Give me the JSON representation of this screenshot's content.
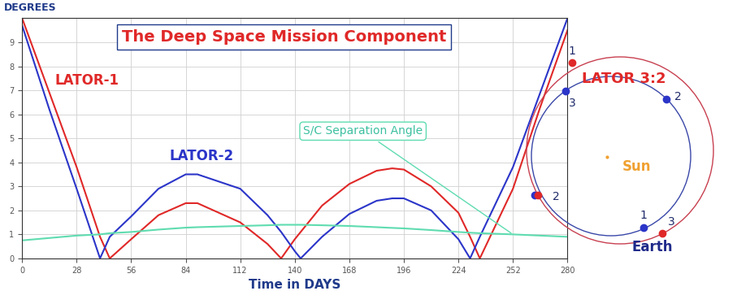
{
  "chart_data": {
    "type": "line",
    "title": "The Deep Space Mission Component",
    "y_label": "DEGREES",
    "x_label": "Time in DAYS",
    "x": [
      0,
      14,
      28,
      40,
      45,
      56,
      70,
      84,
      90,
      112,
      126,
      133,
      140,
      143,
      154,
      168,
      182,
      190,
      196,
      210,
      224,
      230,
      235,
      252,
      266,
      280
    ],
    "xlim": [
      0,
      280
    ],
    "xticks": [
      0,
      28,
      56,
      84,
      112,
      140,
      168,
      196,
      224,
      252,
      280
    ],
    "ylim": [
      0,
      10
    ],
    "yticks": [
      0,
      1,
      2,
      3,
      4,
      5,
      6,
      7,
      8,
      9
    ],
    "grid": true,
    "series": [
      {
        "name": "LATOR-1",
        "color": "#e02828",
        "values": [
          10,
          6.9,
          3.8,
          0.9,
          0,
          0.8,
          1.8,
          2.3,
          2.3,
          1.5,
          0.6,
          0,
          0.8,
          1.1,
          2.2,
          3.1,
          3.65,
          3.75,
          3.7,
          3.0,
          1.9,
          0.9,
          0,
          2.9,
          6.3,
          9.5
        ]
      },
      {
        "name": "LATOR-2",
        "color": "#2b35c8",
        "values": [
          9.7,
          6.2,
          2.9,
          0,
          0.9,
          1.75,
          2.9,
          3.5,
          3.5,
          2.9,
          1.8,
          1.1,
          0.3,
          0,
          0.9,
          1.85,
          2.4,
          2.5,
          2.5,
          2.0,
          0.8,
          0,
          0.9,
          3.8,
          6.9,
          10
        ]
      },
      {
        "name": "S/C Separation Angle",
        "color": "#5fdcb0",
        "values": [
          0.75,
          0.85,
          0.95,
          1.0,
          1.05,
          1.1,
          1.2,
          1.28,
          1.3,
          1.35,
          1.38,
          1.4,
          1.4,
          1.4,
          1.38,
          1.35,
          1.3,
          1.27,
          1.25,
          1.18,
          1.1,
          1.07,
          1.05,
          1.0,
          0.95,
          0.9
        ]
      }
    ]
  },
  "orbit_diagram": {
    "label": "LATOR 3:2",
    "sun": "Sun",
    "planet": "Earth",
    "markers": [
      {
        "label": "1",
        "colors": [
          "#e02828"
        ]
      },
      {
        "label": "3",
        "colors": [
          "#2b35c8"
        ]
      },
      {
        "label": "2",
        "colors": [
          "#2b35c8"
        ]
      },
      {
        "label": "2",
        "colors": [
          "#2b35c8",
          "#e02828"
        ]
      },
      {
        "label": "1",
        "colors": [
          "#2b35c8"
        ]
      },
      {
        "label": "3",
        "colors": [
          "#e02828"
        ]
      }
    ]
  }
}
